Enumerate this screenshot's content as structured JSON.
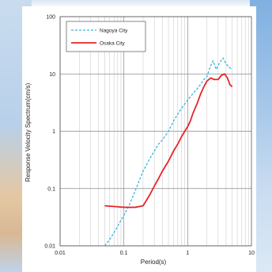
{
  "chart_data": {
    "type": "line",
    "xscale": "log",
    "yscale": "log",
    "xlim": [
      0.01,
      10
    ],
    "ylim": [
      0.01,
      100
    ],
    "xticks": [
      "0.01",
      "0.1",
      "1",
      "10"
    ],
    "yticks": [
      "0.01",
      "0.1",
      "1",
      "10",
      "100"
    ],
    "xlabel": "Period(s)",
    "ylabel": "Response Velocity Spectrum(cm/s)",
    "grid": true,
    "legend_position": "top-left",
    "series": [
      {
        "name": "Nagoya City",
        "color": "#3bb3d8",
        "style": "dashed",
        "points": [
          [
            0.05,
            0.01
          ],
          [
            0.06,
            0.013
          ],
          [
            0.07,
            0.017
          ],
          [
            0.08,
            0.022
          ],
          [
            0.09,
            0.028
          ],
          [
            0.1,
            0.034
          ],
          [
            0.12,
            0.05
          ],
          [
            0.15,
            0.09
          ],
          [
            0.18,
            0.15
          ],
          [
            0.2,
            0.2
          ],
          [
            0.25,
            0.32
          ],
          [
            0.3,
            0.45
          ],
          [
            0.35,
            0.6
          ],
          [
            0.4,
            0.7
          ],
          [
            0.5,
            1.0
          ],
          [
            0.6,
            1.5
          ],
          [
            0.7,
            2.0
          ],
          [
            0.8,
            2.5
          ],
          [
            0.9,
            3.0
          ],
          [
            1.0,
            3.5
          ],
          [
            1.2,
            4.5
          ],
          [
            1.5,
            6.0
          ],
          [
            1.8,
            8.0
          ],
          [
            2.0,
            9.0
          ],
          [
            2.3,
            14
          ],
          [
            2.5,
            17
          ],
          [
            2.8,
            12
          ],
          [
            3.2,
            16
          ],
          [
            3.6,
            19
          ],
          [
            4.0,
            15
          ],
          [
            4.5,
            13
          ],
          [
            5.0,
            12
          ]
        ]
      },
      {
        "name": "Osaka City",
        "color": "#e8242a",
        "style": "solid",
        "points": [
          [
            0.05,
            0.05
          ],
          [
            0.08,
            0.048
          ],
          [
            0.1,
            0.047
          ],
          [
            0.15,
            0.047
          ],
          [
            0.2,
            0.05
          ],
          [
            0.25,
            0.075
          ],
          [
            0.3,
            0.11
          ],
          [
            0.35,
            0.15
          ],
          [
            0.4,
            0.2
          ],
          [
            0.5,
            0.3
          ],
          [
            0.6,
            0.45
          ],
          [
            0.7,
            0.6
          ],
          [
            0.8,
            0.8
          ],
          [
            0.9,
            1.0
          ],
          [
            1.0,
            1.2
          ],
          [
            1.1,
            1.5
          ],
          [
            1.2,
            2.0
          ],
          [
            1.4,
            3.0
          ],
          [
            1.6,
            4.5
          ],
          [
            1.8,
            6.0
          ],
          [
            2.0,
            7.5
          ],
          [
            2.3,
            8.5
          ],
          [
            2.6,
            8.0
          ],
          [
            3.0,
            8.0
          ],
          [
            3.4,
            9.5
          ],
          [
            3.8,
            10.0
          ],
          [
            4.2,
            8.5
          ],
          [
            4.6,
            6.5
          ],
          [
            5.0,
            6.0
          ]
        ]
      }
    ]
  }
}
